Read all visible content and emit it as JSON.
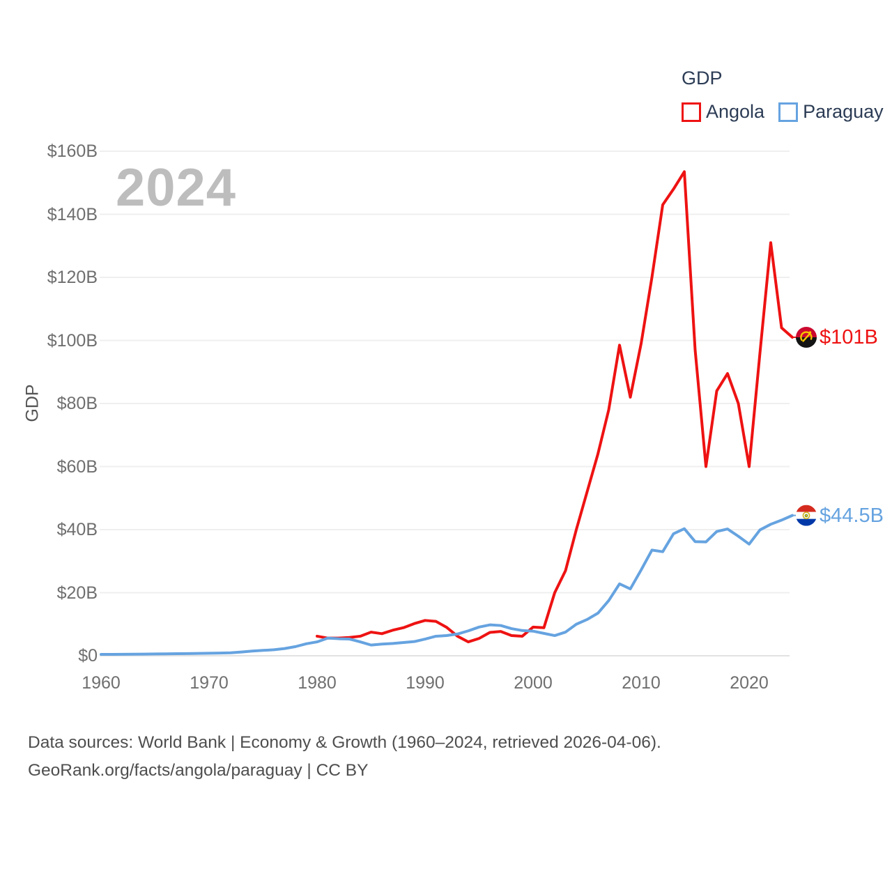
{
  "legend": {
    "title": "GDP",
    "entries": [
      {
        "label": "Angola",
        "color": "#ee1212"
      },
      {
        "label": "Paraguay",
        "color": "#66a3e0"
      }
    ]
  },
  "watermark_year": "2024",
  "y_axis": {
    "title": "GDP",
    "ticks": [
      {
        "value": 0,
        "label": "$0"
      },
      {
        "value": 20,
        "label": "$20B"
      },
      {
        "value": 40,
        "label": "$40B"
      },
      {
        "value": 60,
        "label": "$60B"
      },
      {
        "value": 80,
        "label": "$80B"
      },
      {
        "value": 100,
        "label": "$100B"
      },
      {
        "value": 120,
        "label": "$120B"
      },
      {
        "value": 140,
        "label": "$140B"
      },
      {
        "value": 160,
        "label": "$160B"
      }
    ]
  },
  "x_axis": {
    "ticks": [
      {
        "year": 1960,
        "label": "1960"
      },
      {
        "year": 1970,
        "label": "1970"
      },
      {
        "year": 1980,
        "label": "1980"
      },
      {
        "year": 1990,
        "label": "1990"
      },
      {
        "year": 2000,
        "label": "2000"
      },
      {
        "year": 2010,
        "label": "2010"
      },
      {
        "year": 2020,
        "label": "2020"
      }
    ]
  },
  "series_end_labels": [
    {
      "series": "Angola",
      "text": "$101B",
      "flag": "angola-flag"
    },
    {
      "series": "Paraguay",
      "text": "$44.5B",
      "flag": "paraguay-flag"
    }
  ],
  "footer": {
    "line1": "Data sources: World Bank | Economy & Growth (1960–2024, retrieved 2026-04-06).",
    "line2": "GeoRank.org/facts/angola/paraguay | CC BY"
  },
  "chart_data": {
    "type": "line",
    "title": "GDP",
    "xlabel": "",
    "ylabel": "GDP",
    "y_unit": "billion USD",
    "x_range": [
      1960,
      2024
    ],
    "ylim": [
      0,
      160
    ],
    "grid": "horizontal",
    "legend_position": "top-right",
    "watermark": "2024",
    "series": [
      {
        "name": "Angola",
        "color": "#ee1212",
        "start_year": 1980,
        "end_label": "$101B",
        "values": [
          6.2,
          5.6,
          5.6,
          5.8,
          6.2,
          7.5,
          7.0,
          8.1,
          8.9,
          10.2,
          11.2,
          10.9,
          9.0,
          6.2,
          4.4,
          5.5,
          7.4,
          7.7,
          6.4,
          6.2,
          9.1,
          8.9,
          20.0,
          27.0,
          40.0,
          52.0,
          64.0,
          78.0,
          98.5,
          82.0,
          99.0,
          120.0,
          143.0,
          148.0,
          153.5,
          97.0,
          60.0,
          84.0,
          89.5,
          80.0,
          60.0,
          96.0,
          131.0,
          104.0,
          101.0
        ]
      },
      {
        "name": "Paraguay",
        "color": "#66a3e0",
        "start_year": 1960,
        "end_label": "$44.5B",
        "values": [
          0.44,
          0.45,
          0.47,
          0.5,
          0.53,
          0.57,
          0.6,
          0.65,
          0.7,
          0.75,
          0.8,
          0.86,
          0.94,
          1.2,
          1.5,
          1.7,
          1.9,
          2.3,
          2.9,
          3.8,
          4.4,
          5.6,
          5.4,
          5.3,
          4.4,
          3.4,
          3.7,
          3.9,
          4.2,
          4.5,
          5.3,
          6.2,
          6.4,
          6.9,
          7.9,
          9.1,
          9.8,
          9.6,
          8.6,
          8.0,
          7.8,
          7.1,
          6.4,
          7.5,
          10.0,
          11.5,
          13.5,
          17.5,
          22.8,
          21.2,
          27.2,
          33.5,
          33.0,
          38.7,
          40.3,
          36.2,
          36.1,
          39.4,
          40.2,
          37.9,
          35.4,
          39.9,
          41.7,
          43.0,
          44.5
        ]
      }
    ]
  }
}
